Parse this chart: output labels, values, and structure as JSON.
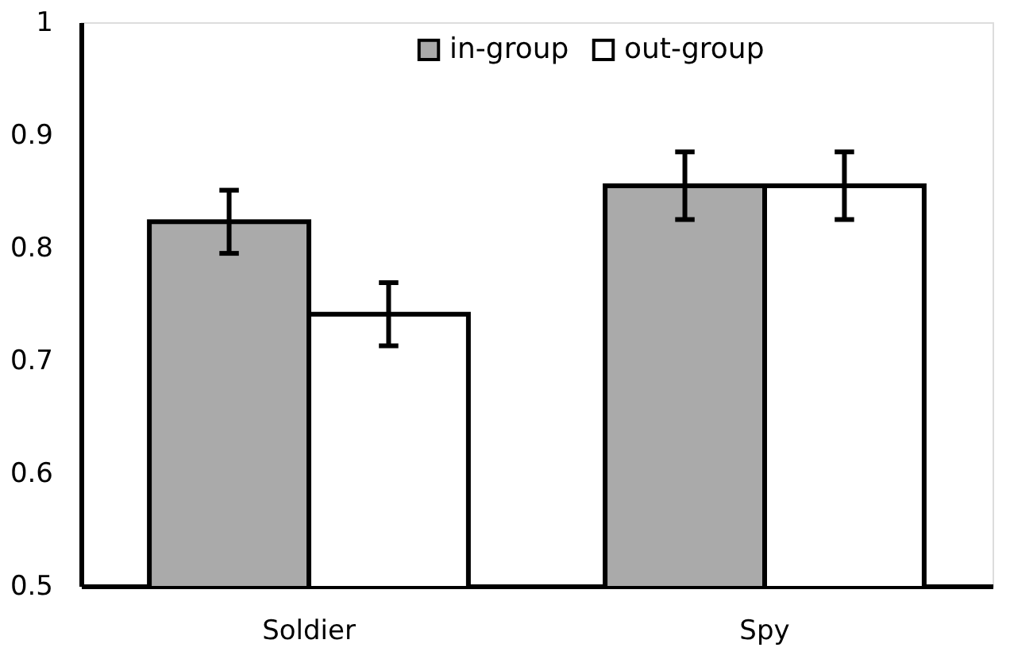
{
  "chart_data": {
    "type": "bar",
    "categories": [
      "Soldier",
      "Spy"
    ],
    "series": [
      {
        "name": "in-group",
        "color": "#aaaaaa",
        "values": [
          0.823,
          0.855
        ],
        "errors": [
          0.028,
          0.03
        ]
      },
      {
        "name": "out-group",
        "color": "#ffffff",
        "values": [
          0.741,
          0.855
        ],
        "errors": [
          0.028,
          0.03
        ]
      }
    ],
    "ylim": [
      0.5,
      1
    ],
    "yticks": [
      0.5,
      0.6,
      0.7,
      0.8,
      0.9,
      {
        "value": 1,
        "label": "1"
      }
    ],
    "grid": false,
    "legend": "top"
  }
}
